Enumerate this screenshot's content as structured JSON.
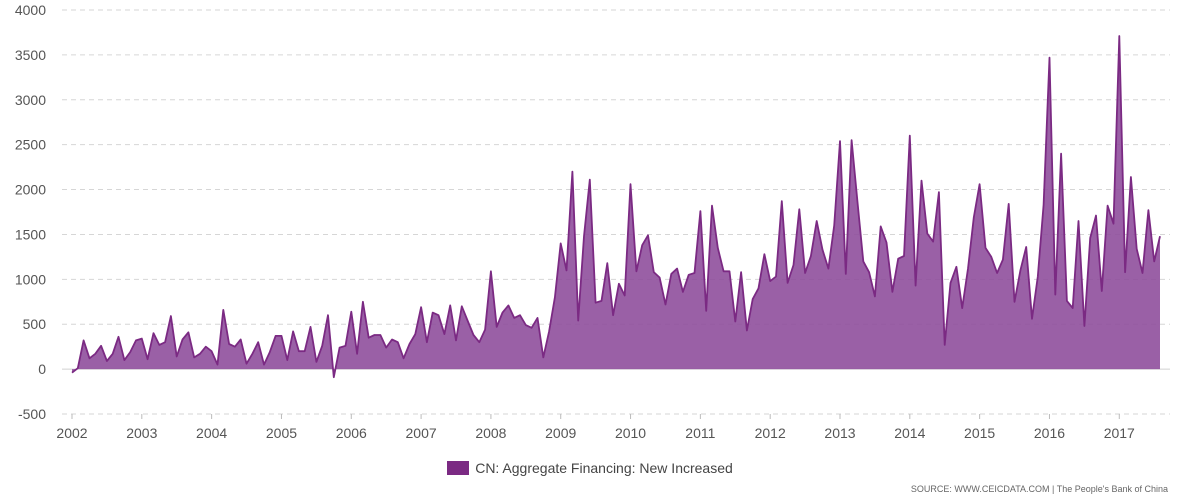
{
  "chart_data": {
    "type": "area",
    "series": [
      {
        "name": "CN: Aggregate Financing: New Increased",
        "color": "#7b2a83",
        "fill": "#8f4f9c",
        "start": "2002-01",
        "values": [
          -40,
          10,
          320,
          120,
          170,
          260,
          90,
          170,
          360,
          100,
          190,
          320,
          340,
          110,
          400,
          270,
          300,
          590,
          140,
          330,
          410,
          130,
          170,
          250,
          200,
          50,
          660,
          280,
          250,
          330,
          60,
          170,
          300,
          50,
          190,
          370,
          370,
          100,
          420,
          200,
          200,
          470,
          80,
          260,
          600,
          -90,
          240,
          260,
          640,
          170,
          750,
          350,
          380,
          380,
          240,
          330,
          300,
          120,
          280,
          390,
          690,
          300,
          630,
          600,
          390,
          710,
          320,
          700,
          540,
          380,
          300,
          440,
          1090,
          470,
          630,
          710,
          570,
          600,
          490,
          460,
          570,
          130,
          420,
          800,
          1400,
          1100,
          2200,
          540,
          1480,
          2110,
          740,
          760,
          1180,
          600,
          950,
          820,
          2060,
          1090,
          1380,
          1490,
          1080,
          1020,
          720,
          1060,
          1120,
          860,
          1050,
          1070,
          1760,
          650,
          1820,
          1350,
          1090,
          1090,
          530,
          1080,
          430,
          780,
          900,
          1280,
          980,
          1030,
          1870,
          960,
          1160,
          1780,
          1070,
          1260,
          1650,
          1330,
          1120,
          1600,
          2540,
          1060,
          2550,
          1860,
          1200,
          1080,
          810,
          1590,
          1410,
          860,
          1230,
          1260,
          2600,
          930,
          2100,
          1510,
          1420,
          1970,
          270,
          960,
          1140,
          680,
          1120,
          1690,
          2060,
          1350,
          1250,
          1070,
          1220,
          1840,
          750,
          1100,
          1360,
          560,
          1030,
          1830,
          3470,
          830,
          2400,
          760,
          680,
          1650,
          480,
          1460,
          1710,
          870,
          1820,
          1620,
          3710,
          1080,
          2140,
          1340,
          1070,
          1770,
          1200,
          1480
        ]
      }
    ],
    "x_ticks": [
      "2002",
      "2003",
      "2004",
      "2005",
      "2006",
      "2007",
      "2008",
      "2009",
      "2010",
      "2011",
      "2012",
      "2013",
      "2014",
      "2015",
      "2016",
      "2017"
    ],
    "y_ticks": [
      4000,
      3500,
      3000,
      2500,
      2000,
      1500,
      1000,
      500,
      0,
      -500
    ],
    "ylim": [
      -500,
      4000
    ],
    "xlim": [
      "2002-01",
      "2017-08"
    ],
    "grid": "horizontal dashed",
    "legend_position": "bottom-center",
    "source": "SOURCE: WWW.CEICDATA.COM | The People's Bank of China"
  }
}
